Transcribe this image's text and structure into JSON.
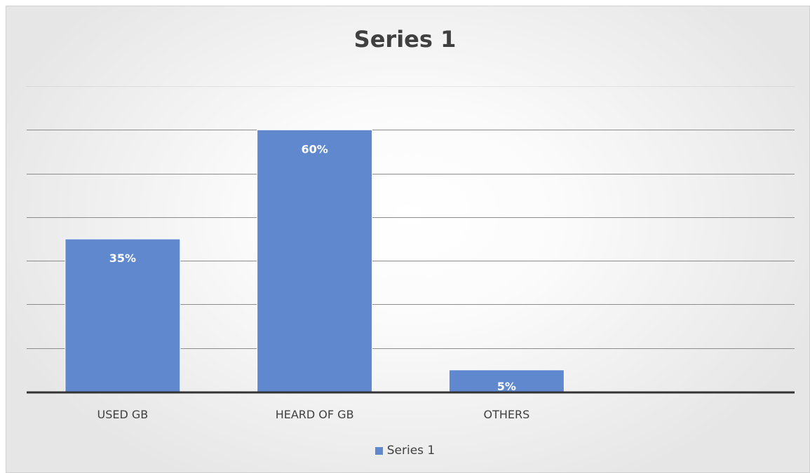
{
  "chart_data": {
    "type": "bar",
    "title": "Series 1",
    "categories": [
      "USED GB",
      "HEARD OF GB",
      "OTHERS"
    ],
    "series": [
      {
        "name": "Series 1",
        "values": [
          35,
          60,
          5
        ],
        "labels": [
          "35%",
          "60%",
          "5%"
        ]
      }
    ],
    "xlabel": "",
    "ylabel": "",
    "ylim": [
      0,
      70
    ],
    "ytick_step": 10,
    "y_axis_labels_visible": false,
    "grid": true,
    "legend_position": "bottom",
    "colors": {
      "bar": "#5f88cf",
      "bar_edge": "#ffffff",
      "gridline": "#8c8c8c",
      "axis": "#333333",
      "text": "#404040"
    }
  }
}
